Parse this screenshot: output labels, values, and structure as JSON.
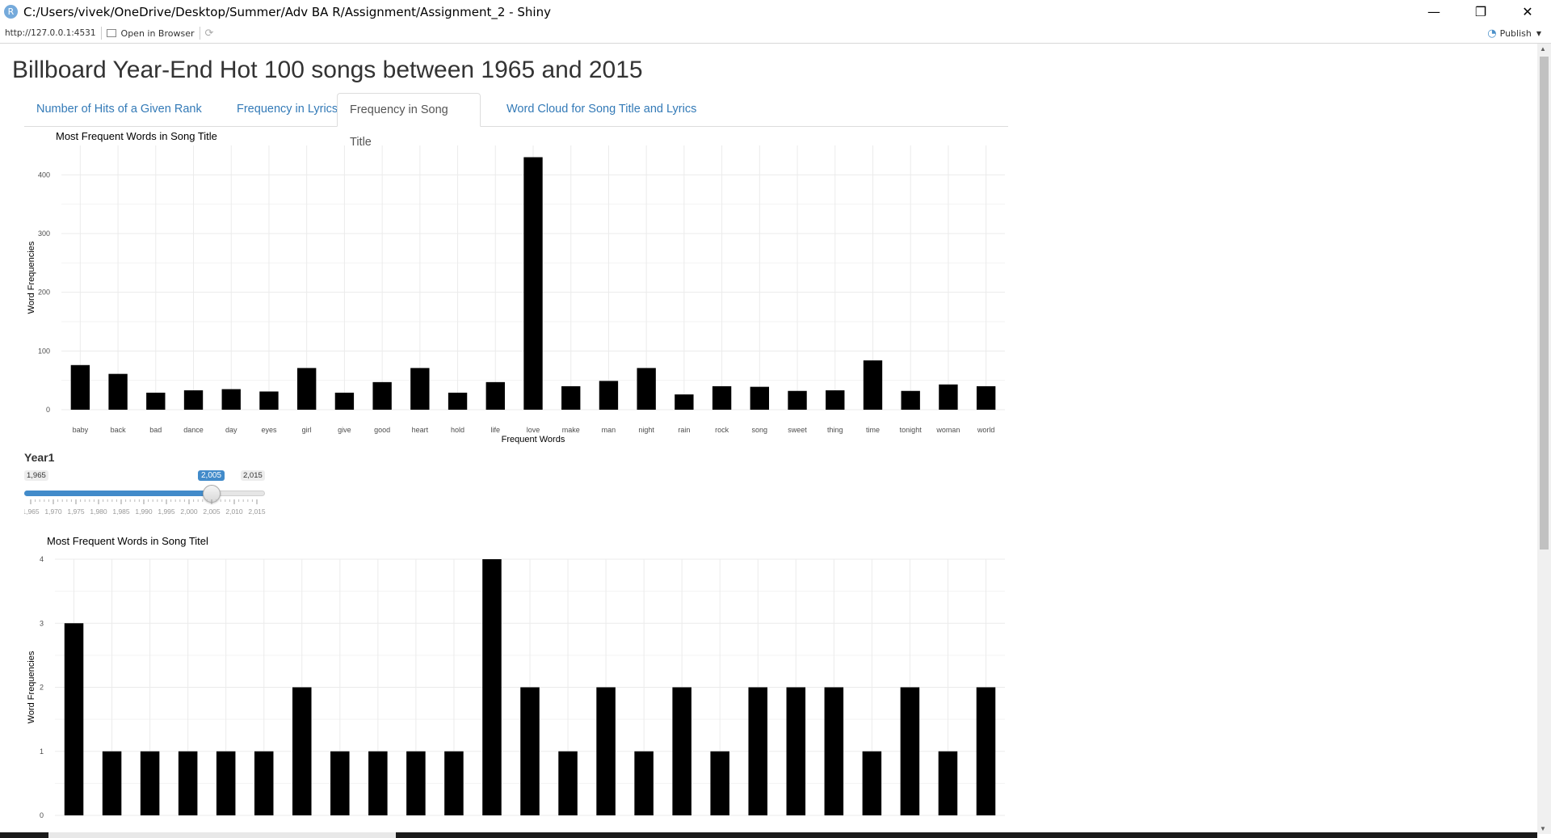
{
  "window": {
    "title": "C:/Users/vivek/OneDrive/Desktop/Summer/Adv BA R/Assignment/Assignment_2 - Shiny",
    "app_icon": "R",
    "minimize": "—",
    "restore": "❐",
    "close": "✕"
  },
  "toolbar": {
    "url": "http://127.0.0.1:4531",
    "open_in_browser": "Open in Browser",
    "publish": "Publish"
  },
  "app": {
    "title": "Billboard Year-End Hot 100 songs between 1965 and 2015"
  },
  "tabs": [
    {
      "label": "Number of Hits of a Given Rank",
      "active": false
    },
    {
      "label": "Frequency in Lyrics",
      "active": false
    },
    {
      "label": "Frequency in Song Title",
      "active": true
    },
    {
      "label": "Word Cloud for Song Title and Lyrics",
      "active": false
    }
  ],
  "slider": {
    "label": "Year1",
    "min": 1965,
    "max": 2015,
    "value": 2005,
    "min_label": "1,965",
    "max_label": "2,015",
    "value_label": "2,005",
    "ticks": [
      "1,965",
      "1,970",
      "1,975",
      "1,980",
      "1,985",
      "1,990",
      "1,995",
      "2,000",
      "2,005",
      "2,010",
      "2,015"
    ]
  },
  "chart_data": [
    {
      "type": "bar",
      "title": "Most Frequent Words in Song Title",
      "xlabel": "Frequent Words",
      "ylabel": "Word Frequencies",
      "ylim": [
        0,
        450
      ],
      "yticks": [
        0,
        100,
        200,
        300,
        400
      ],
      "grid": true,
      "bar_color": "#000000",
      "categories": [
        "baby",
        "back",
        "bad",
        "dance",
        "day",
        "eyes",
        "girl",
        "give",
        "good",
        "heart",
        "hold",
        "life",
        "love",
        "make",
        "man",
        "night",
        "rain",
        "rock",
        "song",
        "sweet",
        "thing",
        "time",
        "tonight",
        "woman",
        "world"
      ],
      "values": [
        76,
        61,
        29,
        33,
        35,
        31,
        71,
        29,
        47,
        71,
        29,
        47,
        430,
        40,
        49,
        71,
        26,
        40,
        39,
        32,
        33,
        84,
        32,
        43,
        40
      ]
    },
    {
      "type": "bar",
      "title": "Most Frequent Words in Song Titel",
      "xlabel": "",
      "ylabel": "Word Frequencies",
      "ylim": [
        0,
        4
      ],
      "yticks": [
        0,
        1,
        2,
        3,
        4
      ],
      "grid": true,
      "bar_color": "#000000",
      "values": [
        3,
        1,
        1,
        1,
        1,
        1,
        2,
        1,
        1,
        1,
        1,
        4,
        2,
        1,
        2,
        1,
        2,
        1,
        2,
        2,
        2,
        1,
        2,
        1,
        2
      ]
    }
  ],
  "icons": {
    "open_in_browser": "window-icon",
    "refresh": "refresh-icon",
    "publish": "publish-icon",
    "publish_caret": "caret-down-icon"
  }
}
